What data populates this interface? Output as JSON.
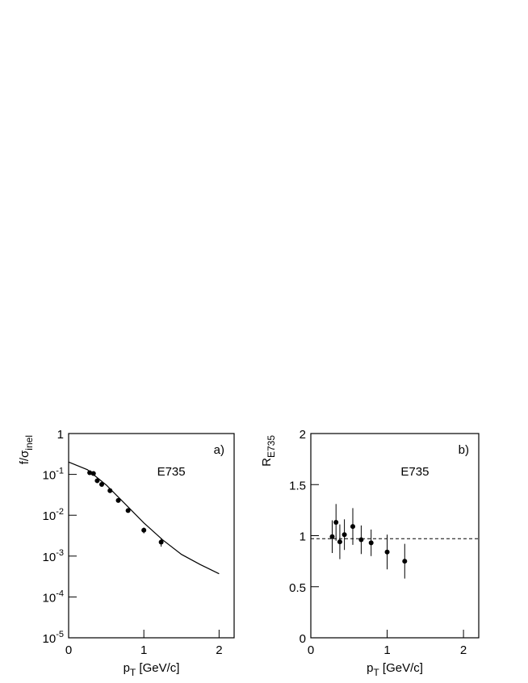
{
  "chart_data": [
    {
      "type": "scatter",
      "yscale": "log",
      "xlim": [
        0,
        2.2
      ],
      "ylim": [
        1e-05,
        1
      ],
      "xticks": [
        0,
        1,
        2
      ],
      "yticks": [
        {
          "value": 1e-05,
          "label": "10",
          "sup": "-5"
        },
        {
          "value": 0.0001,
          "label": "10",
          "sup": "-4"
        },
        {
          "value": 0.001,
          "label": "10",
          "sup": "-3"
        },
        {
          "value": 0.01,
          "label": "10",
          "sup": "-2"
        },
        {
          "value": 0.1,
          "label": "10",
          "sup": "-1"
        },
        1
      ],
      "xlabel": {
        "main": "p",
        "sub": "T",
        "unit": " [GeV/c]"
      },
      "ylabel": {
        "main": "f/σ",
        "sub": "inel"
      },
      "annotations": [
        "a)",
        "E735"
      ],
      "series": [
        {
          "mode": "points",
          "color": "#000000",
          "x": [
            0.28,
            0.33,
            0.38,
            0.44,
            0.55,
            0.66,
            0.79,
            1.0,
            1.23
          ],
          "values": [
            0.11,
            0.105,
            0.07,
            0.057,
            0.04,
            0.023,
            0.013,
            0.0043,
            0.0022
          ],
          "errors": [
            0.01,
            0.01,
            0.008,
            0.005,
            0.004,
            0.002,
            0.001,
            0.0007,
            0.0005
          ]
        },
        {
          "mode": "line",
          "color": "#000000",
          "x": [
            0,
            0.25,
            0.5,
            0.75,
            1.0,
            1.25,
            1.5,
            1.75,
            2.0
          ],
          "values": [
            0.2,
            0.13,
            0.055,
            0.019,
            0.0065,
            0.0025,
            0.0011,
            0.00062,
            0.00037
          ]
        }
      ]
    },
    {
      "type": "scatter",
      "yscale": "linear",
      "xlim": [
        0,
        2.2
      ],
      "ylim": [
        0,
        2
      ],
      "xticks": [
        0,
        1,
        2
      ],
      "yticks": [
        0,
        0.5,
        1,
        1.5,
        2
      ],
      "xlabel": {
        "main": "p",
        "sub": "T",
        "unit": " [GeV/c]"
      },
      "ylabel": {
        "main": "R",
        "sub": "E735"
      },
      "annotations": [
        "b)",
        "E735"
      ],
      "reference_line": 0.97,
      "series": [
        {
          "mode": "points",
          "color": "#000000",
          "x": [
            0.28,
            0.33,
            0.38,
            0.44,
            0.55,
            0.66,
            0.79,
            1.0,
            1.23
          ],
          "values": [
            0.99,
            1.13,
            0.94,
            1.01,
            1.09,
            0.96,
            0.93,
            0.84,
            0.75
          ],
          "errors": [
            0.16,
            0.18,
            0.17,
            0.15,
            0.18,
            0.14,
            0.13,
            0.17,
            0.17
          ]
        }
      ]
    }
  ]
}
